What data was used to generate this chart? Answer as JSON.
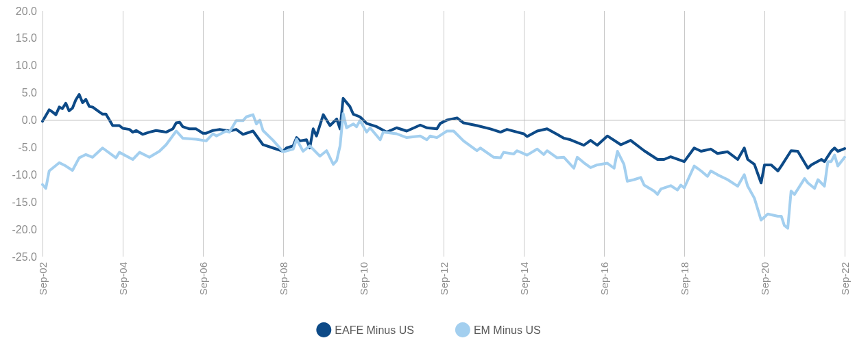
{
  "chart_data": {
    "type": "line",
    "xlim": [
      "2002-09",
      "2022-09"
    ],
    "xticks": [
      {
        "value": "2002-09",
        "label": "Sep-02"
      },
      {
        "value": "2004-09",
        "label": "Sep-04"
      },
      {
        "value": "2006-09",
        "label": "Sep-06"
      },
      {
        "value": "2008-09",
        "label": "Sep-08"
      },
      {
        "value": "2010-09",
        "label": "Sep-10"
      },
      {
        "value": "2012-09",
        "label": "Sep-12"
      },
      {
        "value": "2014-09",
        "label": "Sep-14"
      },
      {
        "value": "2016-09",
        "label": "Sep-16"
      },
      {
        "value": "2018-09",
        "label": "Sep-18"
      },
      {
        "value": "2020-09",
        "label": "Sep-20"
      },
      {
        "value": "2022-09",
        "label": "Sep-22"
      }
    ],
    "ylim": [
      -25,
      20
    ],
    "yticks": [
      {
        "value": -25,
        "label": "-25.0"
      },
      {
        "value": -20,
        "label": "-20.0"
      },
      {
        "value": -15,
        "label": "-15.0"
      },
      {
        "value": -10,
        "label": "-10.0"
      },
      {
        "value": -5,
        "label": "-5.0"
      },
      {
        "value": 0,
        "label": "0.0"
      },
      {
        "value": 5,
        "label": "5.0"
      },
      {
        "value": 10,
        "label": "10.0"
      },
      {
        "value": 15,
        "label": "15.0"
      },
      {
        "value": 20,
        "label": "20.0"
      }
    ],
    "grid": "x",
    "ref_lines": [
      {
        "axis": "y",
        "value": 0,
        "color": "#b3b3b3"
      }
    ],
    "legend": "bottom",
    "marker": "none",
    "line_style": "solid",
    "series": [
      {
        "name": "EAFE Minus US",
        "color": "#0d4a87",
        "x": [
          "2002-09",
          "2002-11",
          "2002-12",
          "2003-01",
          "2003-02",
          "2003-03",
          "2003-04",
          "2003-05",
          "2003-06",
          "2003-07",
          "2003-08",
          "2003-09",
          "2003-10",
          "2003-11",
          "2003-12",
          "2004-02",
          "2004-03",
          "2004-04",
          "2004-06",
          "2004-08",
          "2004-09",
          "2004-11",
          "2004-12",
          "2005-01",
          "2005-03",
          "2005-05",
          "2005-07",
          "2005-09",
          "2005-10",
          "2005-12",
          "2006-01",
          "2006-02",
          "2006-03",
          "2006-05",
          "2006-07",
          "2006-09",
          "2006-10",
          "2006-12",
          "2007-02",
          "2007-05",
          "2007-07",
          "2007-09",
          "2007-12",
          "2008-03",
          "2008-06",
          "2008-09",
          "2008-10",
          "2008-12",
          "2009-01",
          "2009-02",
          "2009-04",
          "2009-05",
          "2009-06",
          "2009-07",
          "2009-09",
          "2009-11",
          "2010-01",
          "2010-02",
          "2010-03",
          "2010-05",
          "2010-06",
          "2010-08",
          "2010-10",
          "2011-01",
          "2011-04",
          "2011-07",
          "2011-10",
          "2012-02",
          "2012-04",
          "2012-07",
          "2012-08",
          "2012-10",
          "2013-01",
          "2013-03",
          "2013-07",
          "2013-11",
          "2014-02",
          "2014-04",
          "2014-09",
          "2014-10",
          "2015-01",
          "2015-04",
          "2015-07",
          "2015-09",
          "2015-11",
          "2016-03",
          "2016-05",
          "2016-07",
          "2016-10",
          "2017-02",
          "2017-05",
          "2017-09",
          "2018-01",
          "2018-03",
          "2018-05",
          "2018-09",
          "2018-12",
          "2019-02",
          "2019-05",
          "2019-07",
          "2019-10",
          "2020-01",
          "2020-03",
          "2020-04",
          "2020-06",
          "2020-08",
          "2020-09",
          "2020-11",
          "2021-01",
          "2021-02",
          "2021-05",
          "2021-07",
          "2021-10",
          "2021-11",
          "2022-02",
          "2022-03",
          "2022-05",
          "2022-06",
          "2022-07",
          "2022-09"
        ],
        "values": [
          -0.2,
          1.9,
          1.5,
          1.0,
          2.4,
          2.1,
          3.1,
          1.7,
          2.2,
          3.7,
          4.7,
          3.2,
          3.8,
          2.5,
          2.4,
          1.5,
          1.1,
          1.1,
          -1.0,
          -1.0,
          -1.5,
          -1.7,
          -2.2,
          -1.9,
          -2.6,
          -2.2,
          -1.9,
          -2.1,
          -2.2,
          -1.6,
          -0.5,
          -0.4,
          -1.2,
          -1.6,
          -1.6,
          -2.4,
          -2.4,
          -1.9,
          -1.7,
          -2.0,
          -1.7,
          -2.6,
          -2.0,
          -4.5,
          -5.1,
          -5.7,
          -5.1,
          -4.7,
          -3.2,
          -3.8,
          -3.6,
          -5.1,
          -1.6,
          -2.9,
          1.0,
          -1.0,
          0.2,
          -1.6,
          4.0,
          2.5,
          1.1,
          0.6,
          -0.6,
          -1.2,
          -2.2,
          -1.4,
          -2.0,
          -0.9,
          -1.4,
          -1.6,
          -0.6,
          0.0,
          0.4,
          -0.5,
          -1.0,
          -1.6,
          -2.2,
          -1.7,
          -2.5,
          -3.0,
          -2.0,
          -1.6,
          -2.6,
          -3.3,
          -3.6,
          -4.6,
          -3.7,
          -4.6,
          -2.9,
          -4.5,
          -3.7,
          -5.6,
          -7.2,
          -7.2,
          -6.7,
          -7.6,
          -5.1,
          -5.7,
          -5.3,
          -6.1,
          -5.8,
          -7.2,
          -5.1,
          -7.2,
          -8.1,
          -11.5,
          -8.2,
          -8.2,
          -9.3,
          -8.4,
          -5.6,
          -5.7,
          -8.8,
          -8.2,
          -7.2,
          -7.6,
          -5.7,
          -5.1,
          -5.7,
          -5.2
        ]
      },
      {
        "name": "EM Minus US",
        "color": "#a3cfef",
        "x": [
          "2002-09",
          "2002-10",
          "2002-11",
          "2003-02",
          "2003-04",
          "2003-06",
          "2003-08",
          "2003-10",
          "2003-12",
          "2004-03",
          "2004-07",
          "2004-08",
          "2004-12",
          "2005-02",
          "2005-05",
          "2005-08",
          "2005-10",
          "2006-01",
          "2006-03",
          "2006-07",
          "2006-10",
          "2006-12",
          "2007-01",
          "2007-04",
          "2007-05",
          "2007-07",
          "2007-09",
          "2007-10",
          "2007-12",
          "2008-01",
          "2008-02",
          "2008-03",
          "2008-06",
          "2008-09",
          "2008-12",
          "2009-01",
          "2009-03",
          "2009-05",
          "2009-08",
          "2009-10",
          "2009-12",
          "2010-01",
          "2010-02",
          "2010-03",
          "2010-04",
          "2010-06",
          "2010-07",
          "2010-08",
          "2010-10",
          "2010-11",
          "2011-02",
          "2011-03",
          "2011-07",
          "2011-10",
          "2012-02",
          "2012-04",
          "2012-05",
          "2012-07",
          "2012-10",
          "2012-12",
          "2013-03",
          "2013-07",
          "2013-08",
          "2013-12",
          "2014-02",
          "2014-03",
          "2014-06",
          "2014-07",
          "2014-10",
          "2015-01",
          "2015-03",
          "2015-04",
          "2015-07",
          "2015-09",
          "2015-12",
          "2016-01",
          "2016-03",
          "2016-05",
          "2016-07",
          "2016-10",
          "2016-12",
          "2017-01",
          "2017-03",
          "2017-04",
          "2017-06",
          "2017-08",
          "2017-09",
          "2017-12",
          "2018-01",
          "2018-02",
          "2018-05",
          "2018-07",
          "2018-08",
          "2018-09",
          "2018-12",
          "2019-02",
          "2019-04",
          "2019-05",
          "2019-07",
          "2019-10",
          "2020-01",
          "2020-03",
          "2020-04",
          "2020-06",
          "2020-08",
          "2020-10",
          "2021-01",
          "2021-02",
          "2021-03",
          "2021-04",
          "2021-05",
          "2021-06",
          "2021-09",
          "2021-10",
          "2021-12",
          "2022-01",
          "2022-03",
          "2022-04",
          "2022-05",
          "2022-06",
          "2022-07",
          "2022-09"
        ],
        "values": [
          -11.8,
          -12.5,
          -9.3,
          -7.8,
          -8.4,
          -9.2,
          -6.9,
          -6.3,
          -6.8,
          -5.1,
          -6.9,
          -5.9,
          -7.2,
          -5.9,
          -6.8,
          -5.7,
          -4.5,
          -2.0,
          -3.3,
          -3.5,
          -3.8,
          -2.5,
          -2.9,
          -2.0,
          -2.2,
          -0.1,
          -0.1,
          0.6,
          1.0,
          -0.7,
          0.0,
          -1.9,
          -3.7,
          -5.8,
          -5.3,
          -3.5,
          -5.7,
          -4.7,
          -6.6,
          -5.6,
          -8.1,
          -7.4,
          -4.7,
          1.2,
          -1.4,
          -0.7,
          -1.2,
          -0.1,
          -2.2,
          -1.4,
          -3.6,
          -2.2,
          -2.5,
          -3.2,
          -2.9,
          -3.6,
          -2.9,
          -3.2,
          -2.0,
          -2.0,
          -3.8,
          -5.6,
          -5.1,
          -6.8,
          -6.9,
          -5.9,
          -6.2,
          -5.6,
          -6.4,
          -5.3,
          -6.3,
          -5.6,
          -6.9,
          -6.8,
          -8.8,
          -6.8,
          -7.8,
          -8.7,
          -8.2,
          -7.9,
          -8.8,
          -5.7,
          -8.1,
          -11.2,
          -10.9,
          -10.5,
          -11.9,
          -13.0,
          -13.6,
          -12.6,
          -12.0,
          -12.8,
          -11.9,
          -12.4,
          -8.4,
          -9.3,
          -10.3,
          -9.3,
          -10.0,
          -10.9,
          -12.1,
          -10.0,
          -12.1,
          -14.3,
          -18.3,
          -17.2,
          -17.6,
          -17.6,
          -19.3,
          -19.8,
          -13.0,
          -13.6,
          -10.7,
          -11.5,
          -12.5,
          -10.9,
          -12.1,
          -7.6,
          -7.6,
          -6.4,
          -8.4,
          -6.8
        ]
      }
    ]
  }
}
